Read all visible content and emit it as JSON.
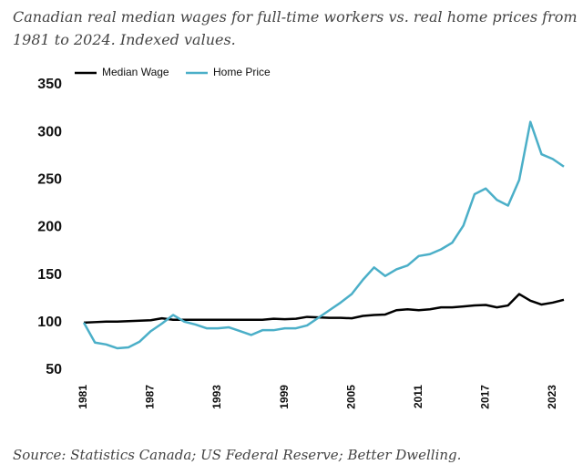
{
  "chart_data": {
    "type": "line",
    "title": "Canadian real median wages for full-time workers vs. real home prices from 1981 to 2024. Indexed values.",
    "source": "Source: Statistics Canada; US Federal Reserve; Better Dwelling.",
    "x": [
      1981,
      1982,
      1983,
      1984,
      1985,
      1986,
      1987,
      1988,
      1989,
      1990,
      1991,
      1992,
      1993,
      1994,
      1995,
      1996,
      1997,
      1998,
      1999,
      2000,
      2001,
      2002,
      2003,
      2004,
      2005,
      2006,
      2007,
      2008,
      2009,
      2010,
      2011,
      2012,
      2013,
      2014,
      2015,
      2016,
      2017,
      2018,
      2019,
      2020,
      2021,
      2022,
      2023,
      2024
    ],
    "series": [
      {
        "name": "Median Wage",
        "color": "#000000",
        "values": [
          100,
          100.5,
          101,
          101,
          101.5,
          102,
          102.5,
          104.5,
          103,
          103,
          103,
          103,
          103,
          103,
          103,
          103,
          103,
          104,
          103.5,
          104,
          106,
          105.5,
          105,
          105,
          104.5,
          107,
          108,
          108.5,
          113,
          114,
          113,
          114,
          116,
          116,
          117,
          118,
          118.5,
          116,
          118,
          130,
          123,
          119,
          121,
          124
        ]
      },
      {
        "name": "Home Price",
        "color": "#4bafc8",
        "values": [
          100,
          79,
          77,
          73,
          74,
          80,
          91,
          99,
          108,
          101,
          98,
          94,
          94,
          95,
          91,
          87,
          92,
          92,
          94,
          94,
          97,
          105,
          113,
          121,
          130,
          145,
          158,
          149,
          156,
          160,
          170,
          172,
          177,
          184,
          202,
          235,
          241,
          229,
          223,
          250,
          311,
          277,
          272,
          264
        ]
      }
    ],
    "xlim": [
      1981,
      2024
    ],
    "xticks": [
      1981,
      1987,
      1993,
      1999,
      2005,
      2011,
      2017,
      2023
    ],
    "ylim": [
      50,
      350
    ],
    "yticks": [
      50,
      100,
      150,
      200,
      250,
      300,
      350
    ],
    "legend": "top-left"
  }
}
